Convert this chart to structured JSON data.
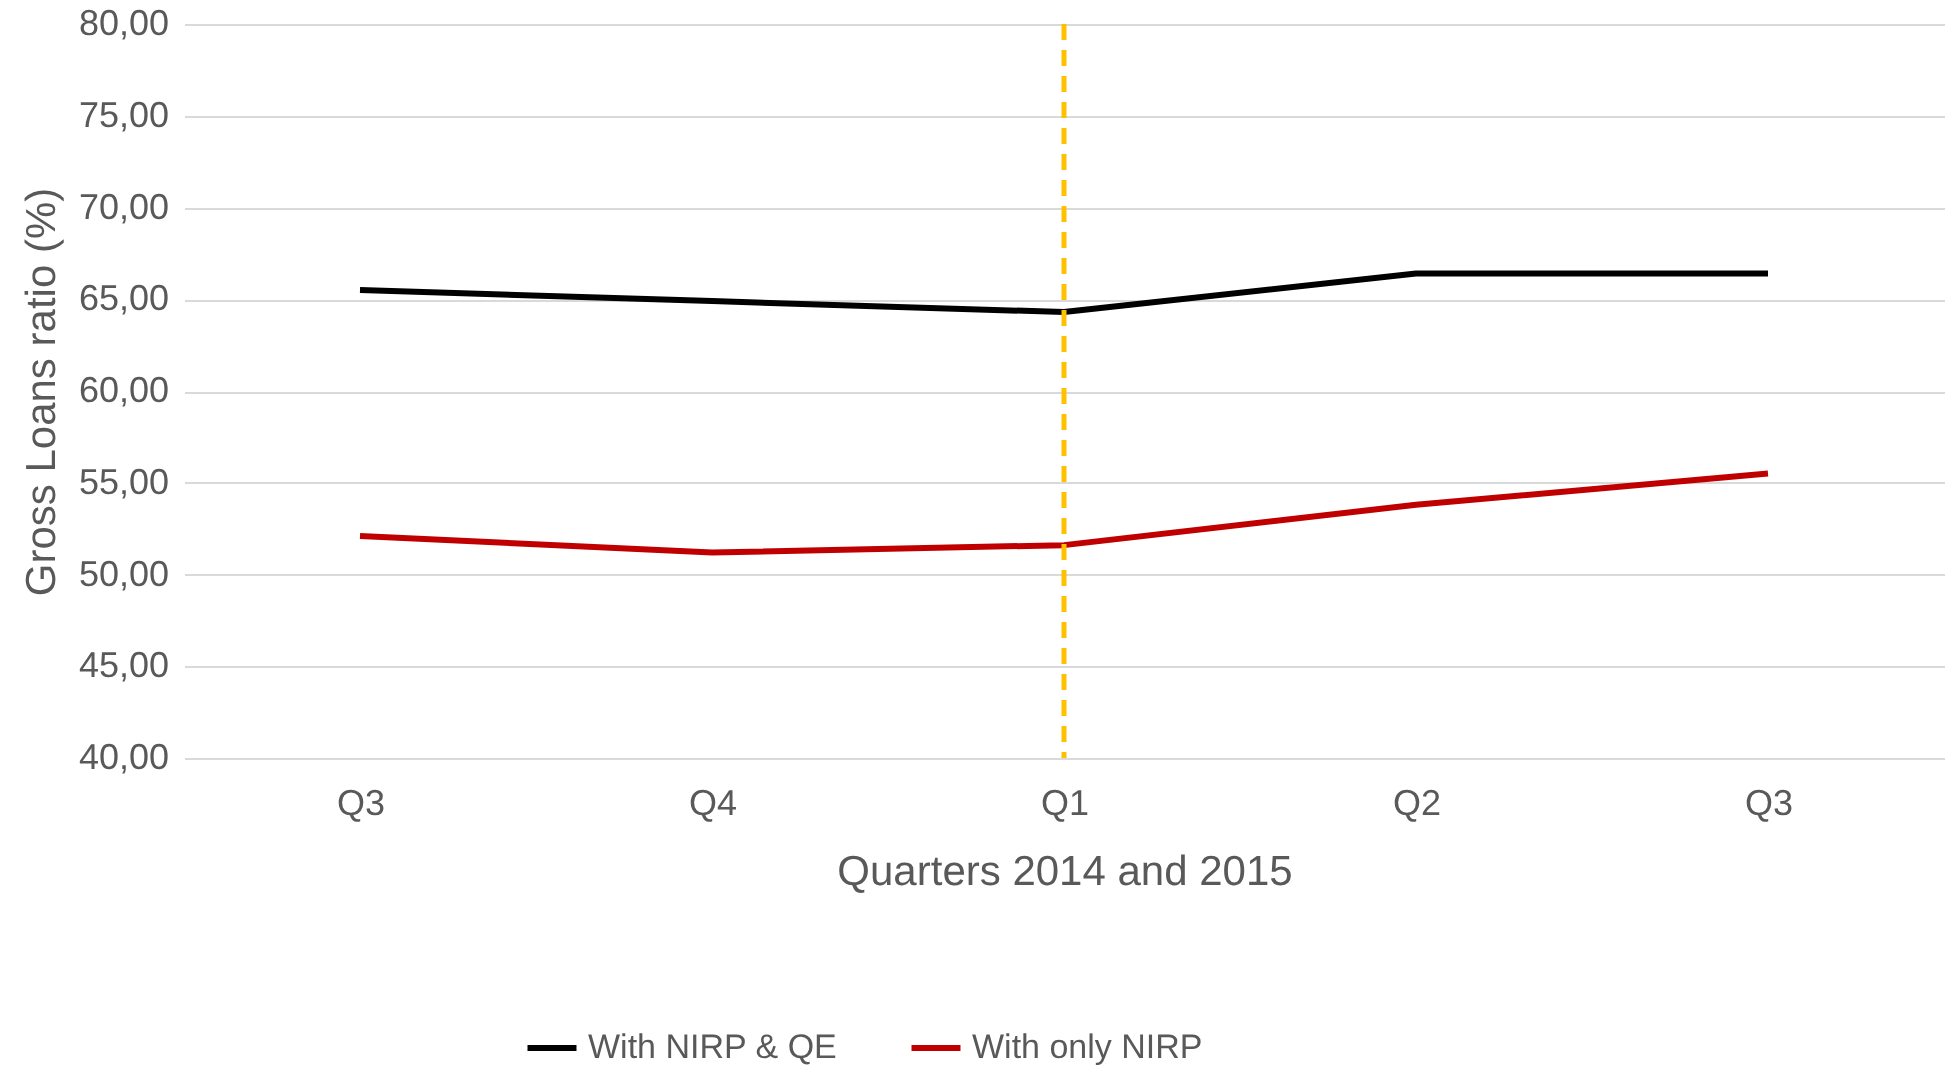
{
  "chart_data": {
    "type": "line",
    "xlabel": "Quarters 2014 and 2015",
    "ylabel": "Gross Loans ratio (%)",
    "categories": [
      "Q3",
      "Q4",
      "Q1",
      "Q2",
      "Q3"
    ],
    "series": [
      {
        "name": "With NIRP & QE",
        "color": "#000000",
        "values": [
          65.5,
          64.9,
          64.3,
          66.4,
          66.4
        ]
      },
      {
        "name": "With only NIRP",
        "color": "#c00000",
        "values": [
          52.1,
          51.2,
          51.6,
          53.8,
          55.5
        ]
      }
    ],
    "ylim": [
      40,
      80
    ],
    "yticks": [
      {
        "value": 40,
        "label": "40,00"
      },
      {
        "value": 45,
        "label": "45,00"
      },
      {
        "value": 50,
        "label": "50,00"
      },
      {
        "value": 55,
        "label": "55,00"
      },
      {
        "value": 60,
        "label": "60,00"
      },
      {
        "value": 65,
        "label": "65,00"
      },
      {
        "value": 70,
        "label": "70,00"
      },
      {
        "value": 75,
        "label": "75,00"
      },
      {
        "value": 80,
        "label": "80,00"
      }
    ],
    "ref_lines": [
      {
        "axis": "x",
        "value": "Q1",
        "color": "#ffc000",
        "line_style": "dashed"
      }
    ],
    "grid": "y",
    "legend": "bottom",
    "marker": "none",
    "line_style": "solid"
  }
}
